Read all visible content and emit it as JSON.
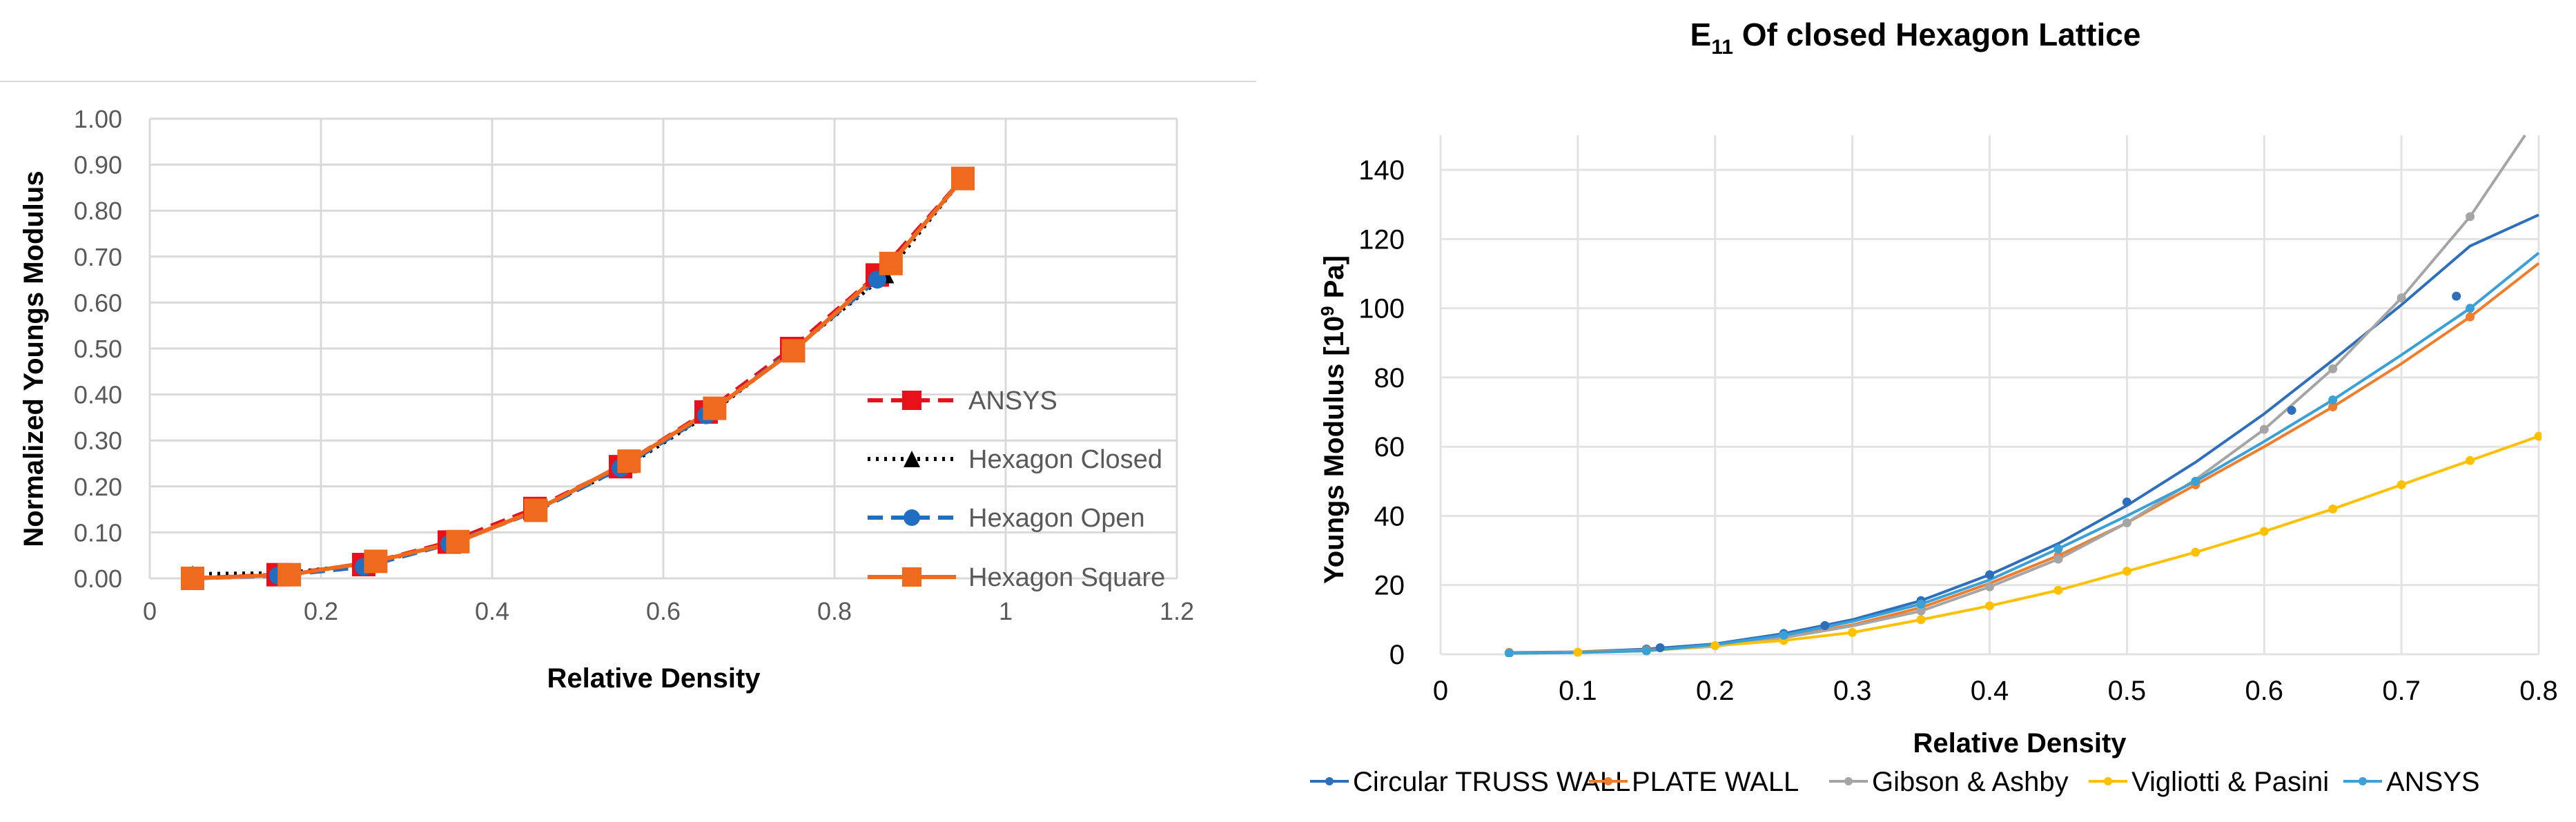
{
  "chart_data": [
    {
      "type": "line",
      "title": "",
      "xlabel": "Relative Density",
      "ylabel": "Normalized Youngs Modulus",
      "xlim": [
        0,
        1.2
      ],
      "ylim": [
        0,
        1.0
      ],
      "x_ticks": [
        "0",
        "0.2",
        "0.4",
        "0.6",
        "0.8",
        "1",
        "1.2"
      ],
      "y_ticks": [
        "0.00",
        "0.10",
        "0.20",
        "0.30",
        "0.40",
        "0.50",
        "0.60",
        "0.70",
        "0.80",
        "0.90",
        "1.00"
      ],
      "grid": true,
      "legend_position": "right",
      "series": [
        {
          "name": "ANSYS",
          "color": "#e8111b",
          "dash": "dashed",
          "marker": "square",
          "points": [
            [
              0.05,
              0.0
            ],
            [
              0.15,
              0.008
            ],
            [
              0.25,
              0.03
            ],
            [
              0.35,
              0.079
            ],
            [
              0.45,
              0.152
            ],
            [
              0.55,
              0.243
            ],
            [
              0.65,
              0.362
            ],
            [
              0.75,
              0.5
            ],
            [
              0.85,
              0.66
            ],
            [
              0.95,
              0.87
            ]
          ]
        },
        {
          "name": "Hexagon Closed",
          "color": "#000000",
          "dash": "dotted",
          "marker": "triangle",
          "points": [
            [
              0.05,
              0.01
            ],
            [
              0.16,
              0.012
            ],
            [
              0.26,
              0.033
            ],
            [
              0.36,
              0.08
            ],
            [
              0.45,
              0.148
            ],
            [
              0.56,
              0.247
            ],
            [
              0.66,
              0.365
            ],
            [
              0.75,
              0.495
            ],
            [
              0.86,
              0.66
            ],
            [
              0.95,
              0.87
            ]
          ]
        },
        {
          "name": "Hexagon Open",
          "color": "#1f6ec1",
          "dash": "dashed",
          "marker": "circle",
          "points": [
            [
              0.05,
              0.0
            ],
            [
              0.15,
              0.006
            ],
            [
              0.25,
              0.025
            ],
            [
              0.35,
              0.075
            ],
            [
              0.45,
              0.145
            ],
            [
              0.55,
              0.24
            ],
            [
              0.65,
              0.355
            ],
            [
              0.75,
              0.495
            ],
            [
              0.85,
              0.65
            ],
            [
              0.95,
              0.87
            ]
          ]
        },
        {
          "name": "Hexagon Square",
          "color": "#f06a1e",
          "dash": "solid",
          "marker": "square",
          "points": [
            [
              0.05,
              0.0
            ],
            [
              0.163,
              0.008
            ],
            [
              0.264,
              0.037
            ],
            [
              0.36,
              0.08
            ],
            [
              0.451,
              0.148
            ],
            [
              0.56,
              0.255
            ],
            [
              0.66,
              0.37
            ],
            [
              0.752,
              0.495
            ],
            [
              0.866,
              0.685
            ],
            [
              0.95,
              0.87
            ]
          ]
        }
      ]
    },
    {
      "type": "line",
      "title_main": "E",
      "title_sub": "11",
      "title_rest": " Of closed Hexagon Lattice",
      "xlabel": "Relative Density",
      "ylabel_prefix": "Youngs Modulus [10",
      "ylabel_sup": "9",
      "ylabel_suffix": " Pa]",
      "xlim": [
        0,
        0.8
      ],
      "ylim": [
        0,
        150
      ],
      "x_ticks": [
        "0",
        "0.1",
        "0.2",
        "0.3",
        "0.4",
        "0.5",
        "0.6",
        "0.7",
        "0.8"
      ],
      "y_ticks": [
        "0",
        "20",
        "40",
        "60",
        "80",
        "100",
        "120",
        "140"
      ],
      "grid": true,
      "legend_position": "bottom",
      "series": [
        {
          "name": "Circular TRUSS WALL",
          "color": "#2e6fbd",
          "marker_points": [
            [
              0.05,
              0.5
            ],
            [
              0.15,
              1.5
            ],
            [
              0.16,
              1.9
            ],
            [
              0.25,
              6.0
            ],
            [
              0.28,
              8.3
            ],
            [
              0.35,
              15.5
            ],
            [
              0.4,
              23.0
            ],
            [
              0.5,
              44.0
            ],
            [
              0.62,
              70.5
            ],
            [
              0.74,
              103.5
            ]
          ],
          "curve": [
            [
              0.05,
              0.5
            ],
            [
              0.1,
              0.7
            ],
            [
              0.15,
              1.5
            ],
            [
              0.2,
              3.0
            ],
            [
              0.25,
              6.0
            ],
            [
              0.3,
              10.0
            ],
            [
              0.35,
              15.5
            ],
            [
              0.4,
              23.0
            ],
            [
              0.45,
              32.0
            ],
            [
              0.5,
              43.0
            ],
            [
              0.55,
              55.5
            ],
            [
              0.6,
              69.5
            ],
            [
              0.65,
              85.0
            ],
            [
              0.7,
              101.0
            ],
            [
              0.75,
              118.0
            ],
            [
              0.8,
              127.0
            ]
          ]
        },
        {
          "name": "PLATE  WALL",
          "color": "#f07d2c",
          "marker_points": [
            [
              0.05,
              0.5
            ],
            [
              0.15,
              1.2
            ],
            [
              0.25,
              5.0
            ],
            [
              0.35,
              13.0
            ],
            [
              0.45,
              28.5
            ],
            [
              0.55,
              49.0
            ],
            [
              0.65,
              71.5
            ],
            [
              0.75,
              97.5
            ]
          ],
          "curve": [
            [
              0.05,
              0.4
            ],
            [
              0.1,
              0.6
            ],
            [
              0.15,
              1.2
            ],
            [
              0.2,
              2.5
            ],
            [
              0.25,
              5.0
            ],
            [
              0.3,
              8.5
            ],
            [
              0.35,
              13.5
            ],
            [
              0.4,
              20.5
            ],
            [
              0.45,
              28.5
            ],
            [
              0.5,
              38.0
            ],
            [
              0.55,
              49.0
            ],
            [
              0.6,
              60.0
            ],
            [
              0.65,
              71.5
            ],
            [
              0.7,
              84.0
            ],
            [
              0.75,
              97.5
            ],
            [
              0.8,
              113.0
            ]
          ]
        },
        {
          "name": "Gibson & Ashby",
          "color": "#a5a5a5",
          "marker_points": [
            [
              0.05,
              0.3
            ],
            [
              0.15,
              1.1
            ],
            [
              0.25,
              4.8
            ],
            [
              0.35,
              12.5
            ],
            [
              0.4,
              19.5
            ],
            [
              0.45,
              27.5
            ],
            [
              0.5,
              38.0
            ],
            [
              0.6,
              65.0
            ],
            [
              0.65,
              82.5
            ],
            [
              0.7,
              103.0
            ],
            [
              0.75,
              126.5
            ]
          ],
          "curve": [
            [
              0.05,
              0.3
            ],
            [
              0.1,
              0.5
            ],
            [
              0.15,
              1.1
            ],
            [
              0.2,
              2.3
            ],
            [
              0.25,
              4.8
            ],
            [
              0.3,
              8.2
            ],
            [
              0.35,
              12.5
            ],
            [
              0.4,
              19.5
            ],
            [
              0.45,
              27.5
            ],
            [
              0.5,
              38.0
            ],
            [
              0.55,
              50.5
            ],
            [
              0.6,
              65.0
            ],
            [
              0.65,
              82.5
            ],
            [
              0.7,
              103.0
            ],
            [
              0.75,
              126.5
            ],
            [
              0.79,
              150.0
            ]
          ]
        },
        {
          "name": "Vigliotti & Pasini",
          "color": "#ffc000",
          "marker_points": [
            [
              0.05,
              0.3
            ],
            [
              0.1,
              0.6
            ],
            [
              0.15,
              1.0
            ],
            [
              0.2,
              2.5
            ],
            [
              0.25,
              4.0
            ],
            [
              0.3,
              6.3
            ],
            [
              0.35,
              10.0
            ],
            [
              0.4,
              14.0
            ],
            [
              0.45,
              18.5
            ],
            [
              0.5,
              24.0
            ],
            [
              0.55,
              29.5
            ],
            [
              0.6,
              35.5
            ],
            [
              0.65,
              42.0
            ],
            [
              0.7,
              49.0
            ],
            [
              0.75,
              56.0
            ],
            [
              0.8,
              63.0
            ]
          ],
          "curve": [
            [
              0.05,
              0.3
            ],
            [
              0.1,
              0.6
            ],
            [
              0.15,
              1.0
            ],
            [
              0.2,
              2.5
            ],
            [
              0.25,
              4.0
            ],
            [
              0.3,
              6.3
            ],
            [
              0.35,
              10.0
            ],
            [
              0.4,
              14.0
            ],
            [
              0.45,
              18.5
            ],
            [
              0.5,
              24.0
            ],
            [
              0.55,
              29.5
            ],
            [
              0.6,
              35.5
            ],
            [
              0.65,
              42.0
            ],
            [
              0.7,
              49.0
            ],
            [
              0.75,
              56.0
            ],
            [
              0.8,
              63.0
            ]
          ]
        },
        {
          "name": "ANSYS",
          "color": "#3aa0d8",
          "marker_points": [
            [
              0.05,
              0.3
            ],
            [
              0.15,
              1.0
            ],
            [
              0.25,
              5.5
            ],
            [
              0.35,
              14.5
            ],
            [
              0.45,
              30.5
            ],
            [
              0.55,
              50.0
            ],
            [
              0.65,
              73.5
            ],
            [
              0.75,
              100.0
            ]
          ],
          "curve": [
            [
              0.05,
              0.3
            ],
            [
              0.1,
              0.5
            ],
            [
              0.15,
              1.0
            ],
            [
              0.2,
              2.8
            ],
            [
              0.25,
              5.5
            ],
            [
              0.3,
              9.5
            ],
            [
              0.35,
              14.5
            ],
            [
              0.4,
              21.5
            ],
            [
              0.45,
              30.5
            ],
            [
              0.5,
              40.0
            ],
            [
              0.55,
              50.0
            ],
            [
              0.6,
              61.5
            ],
            [
              0.65,
              73.5
            ],
            [
              0.7,
              86.5
            ],
            [
              0.75,
              100.0
            ],
            [
              0.8,
              116.0
            ]
          ]
        }
      ]
    }
  ]
}
